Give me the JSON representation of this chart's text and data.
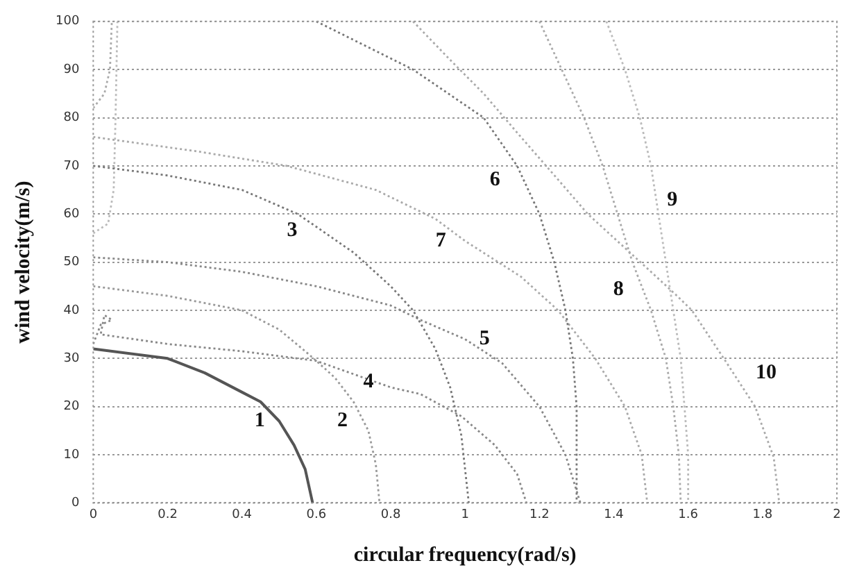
{
  "chart_data": {
    "type": "line",
    "xlabel": "circular frequency(rad/s)",
    "ylabel": "wind velocity(m/s)",
    "xlim": [
      0,
      2
    ],
    "ylim": [
      0,
      100
    ],
    "xticks": [
      0,
      0.2,
      0.4,
      0.6,
      0.8,
      1,
      1.2,
      1.4,
      1.6,
      1.8,
      2
    ],
    "yticks": [
      0,
      10,
      20,
      30,
      40,
      50,
      60,
      70,
      80,
      90,
      100
    ],
    "grid": "y",
    "legend": false,
    "marker": "none",
    "series": [
      {
        "name": "1",
        "color": "#555555",
        "line_style": "solid",
        "x": [
          0,
          0.2,
          0.3,
          0.4,
          0.45,
          0.5,
          0.54,
          0.57,
          0.59
        ],
        "values": [
          32,
          30,
          27,
          23,
          21,
          17,
          12,
          7,
          0
        ]
      },
      {
        "name": "2",
        "color": "#999999",
        "line_style": "dotted",
        "x": [
          0,
          0.2,
          0.4,
          0.5,
          0.57,
          0.6,
          0.65,
          0.7,
          0.74,
          0.76,
          0.77
        ],
        "values": [
          45,
          43,
          40,
          36,
          31.5,
          29.5,
          26,
          21,
          15,
          8,
          0
        ]
      },
      {
        "name": "3",
        "color": "#777777",
        "line_style": "dotted",
        "x": [
          0,
          0.2,
          0.4,
          0.55,
          0.7,
          0.8,
          0.86,
          0.92,
          0.96,
          0.99,
          1.01
        ],
        "values": [
          70,
          68,
          65,
          60,
          52,
          45,
          40,
          32,
          24,
          14,
          0
        ]
      },
      {
        "name": "4",
        "color": "#888888",
        "line_style": "dotted",
        "x": [
          0,
          0.02,
          0.05,
          0.03,
          0.02,
          0.2,
          0.4,
          0.6,
          0.8,
          0.88,
          0.99,
          1.08,
          1.14,
          1.165
        ],
        "values": [
          33,
          37,
          38,
          39,
          35,
          33,
          31.5,
          29.5,
          24,
          22.6,
          18,
          12,
          6,
          0
        ]
      },
      {
        "name": "5",
        "color": "#888888",
        "line_style": "dotted",
        "x": [
          0,
          0.2,
          0.4,
          0.6,
          0.8,
          0.88,
          1,
          1.1,
          1.2,
          1.27,
          1.31
        ],
        "values": [
          51,
          50,
          48,
          45,
          41,
          38,
          34,
          29,
          20,
          10,
          0
        ]
      },
      {
        "name": "6",
        "color": "#777777",
        "line_style": "dotted",
        "x": [
          0.6,
          0.86,
          1.05,
          1.14,
          1.2,
          1.24,
          1.27,
          1.29,
          1.3,
          1.3,
          1.3
        ],
        "values": [
          100,
          90,
          80,
          70,
          60,
          50,
          40,
          30,
          20,
          10,
          0
        ]
      },
      {
        "name": "7",
        "color": "#aaaaaa",
        "line_style": "dotted",
        "x": [
          0,
          0.28,
          0.52,
          0.76,
          0.92,
          1,
          1.15,
          1.25,
          1.35,
          1.43,
          1.475,
          1.49
        ],
        "values": [
          76,
          73,
          70,
          65,
          59,
          54.4,
          47,
          40,
          30,
          20,
          10,
          0
        ]
      },
      {
        "name": "8",
        "color": "#aaaaaa",
        "line_style": "dotted",
        "x": [
          0,
          0.03,
          0.045,
          0.05,
          null,
          1.2,
          1.26,
          1.32,
          1.37,
          1.41,
          1.45,
          1.5,
          1.54,
          1.56,
          1.575,
          1.58
        ],
        "values": [
          82,
          85,
          90,
          100,
          null,
          100,
          90,
          80,
          70,
          60,
          50,
          40,
          30,
          20,
          10,
          0
        ]
      },
      {
        "name": "9",
        "color": "#bbbbbb",
        "line_style": "dotted",
        "x": [
          0,
          0.04,
          0.055,
          0.06,
          0.065,
          null,
          1.38,
          1.43,
          1.47,
          1.5,
          1.52,
          1.54,
          1.56,
          1.58,
          1.59,
          1.6,
          1.6
        ],
        "values": [
          56,
          58,
          65,
          80,
          100,
          null,
          100,
          90,
          80,
          70,
          60,
          50,
          40,
          30,
          20,
          10,
          0
        ]
      },
      {
        "name": "10",
        "color": "#aaaaaa",
        "line_style": "dotted",
        "x": [
          0.86,
          0.96,
          1.05,
          1.15,
          1.245,
          1.33,
          1.415,
          1.5,
          1.57,
          1.61,
          1.7,
          1.78,
          1.83,
          1.845
        ],
        "values": [
          100,
          92,
          85,
          76,
          67.6,
          60,
          54,
          48,
          43,
          40,
          29.5,
          20,
          9.5,
          0
        ]
      }
    ]
  }
}
